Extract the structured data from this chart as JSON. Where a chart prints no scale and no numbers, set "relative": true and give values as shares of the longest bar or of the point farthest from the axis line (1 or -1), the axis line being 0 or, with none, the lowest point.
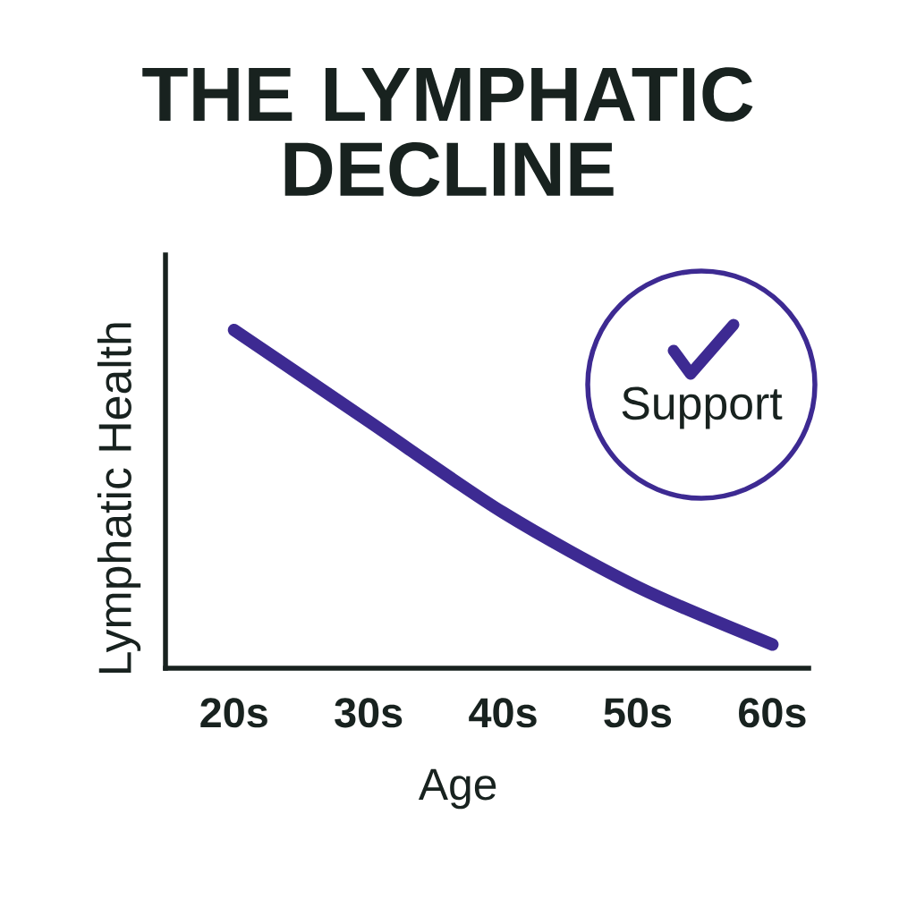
{
  "chart_data": {
    "type": "line",
    "title": "THE LYMPHATIC DECLINE",
    "xlabel": "Age",
    "ylabel": "Lymphatic Health",
    "categories": [
      "20s",
      "30s",
      "40s",
      "50s",
      "60s"
    ],
    "values": [
      1,
      0.73,
      0.46,
      0.24,
      0.07
    ],
    "color": "#3d2a92",
    "relative": true,
    "annotations": [
      "Support"
    ]
  }
}
